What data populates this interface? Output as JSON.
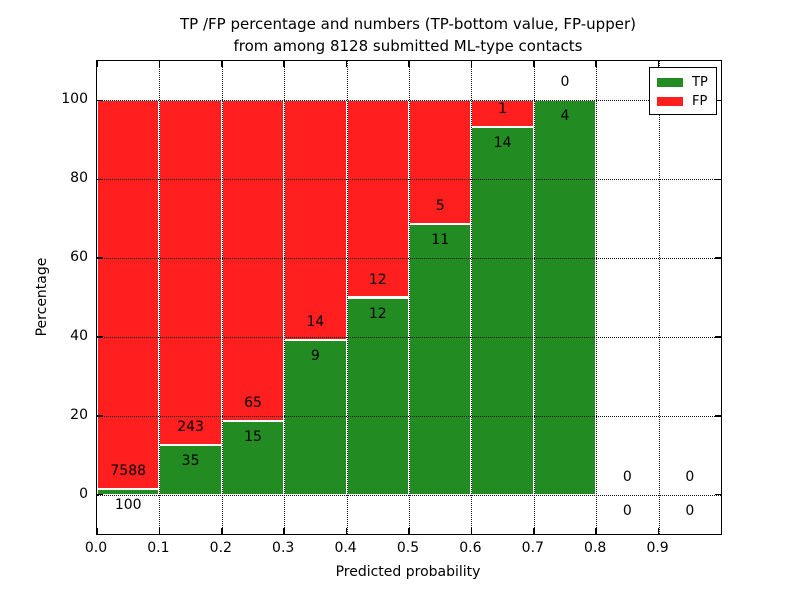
{
  "chart_data": {
    "type": "bar",
    "stacked": true,
    "title_line1": "TP /FP percentage and numbers (TP-bottom value, FP-upper)",
    "title_line2": "from among 8128 submitted ML-type contacts",
    "xlabel": "Predicted probability",
    "ylabel": "Percentage",
    "total_contacts": 8128,
    "bin_edges": [
      0.0,
      0.1,
      0.2,
      0.3,
      0.4,
      0.5,
      0.6,
      0.7,
      0.8,
      0.9,
      1.0
    ],
    "series": [
      {
        "name": "TP",
        "color": "#228b22",
        "counts": [
          100,
          35,
          15,
          9,
          12,
          11,
          14,
          4,
          0,
          0
        ],
        "pct": [
          1.3,
          12.59,
          18.75,
          39.13,
          50.0,
          68.75,
          93.33,
          100.0,
          0.0,
          0.0
        ]
      },
      {
        "name": "FP",
        "color": "#ff1f1f",
        "counts": [
          7588,
          243,
          65,
          14,
          12,
          5,
          1,
          0,
          0,
          0
        ],
        "pct": [
          98.7,
          87.41,
          81.25,
          60.87,
          50.0,
          31.25,
          6.67,
          0.0,
          0.0,
          0.0
        ]
      }
    ],
    "xticks": [
      "0.0",
      "0.1",
      "0.2",
      "0.3",
      "0.4",
      "0.5",
      "0.6",
      "0.7",
      "0.8",
      "0.9"
    ],
    "yticks": [
      "0",
      "20",
      "40",
      "60",
      "80",
      "100"
    ],
    "xlim": [
      0.0,
      1.0
    ],
    "ylim": [
      -10,
      110
    ],
    "grid": "dotted",
    "legend": {
      "position": "upper right",
      "items": [
        {
          "label": "TP",
          "color": "#228b22"
        },
        {
          "label": "FP",
          "color": "#ff1f1f"
        }
      ]
    }
  }
}
